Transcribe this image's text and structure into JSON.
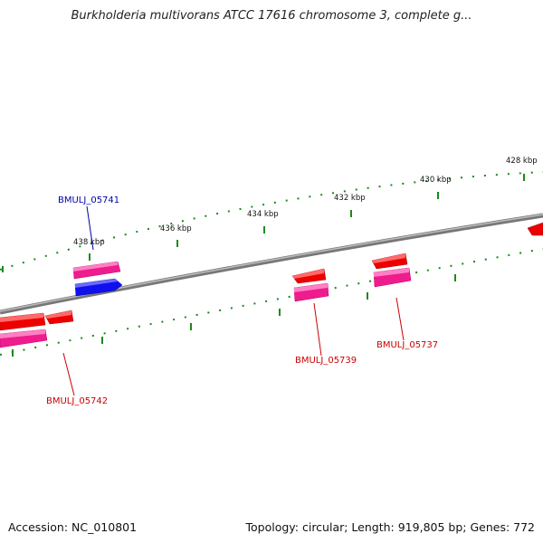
{
  "title": "Burkholderia multivorans ATCC 17616 chromosome 3, complete g...",
  "footer": {
    "accession": "Accession: NC_010801",
    "info": "Topology: circular; Length: 919,805 bp; Genes: 772"
  },
  "colors": {
    "backbone": "#8a8a8a",
    "tick": "#1a8a1a",
    "gene_red": "#ee0000",
    "gene_pink": "#ee1c8c",
    "gene_blue": "#1010ee",
    "label_red": "#cc0000",
    "label_blue": "#0000aa"
  },
  "kbp_labels": [
    "438 kbp",
    "436 kbp",
    "434 kbp",
    "432 kbp",
    "430 kbp",
    "428 kbp"
  ],
  "gene_labels": [
    {
      "id": "BMULJ_05741",
      "color": "blue"
    },
    {
      "id": "BMULJ_05739",
      "color": "red"
    },
    {
      "id": "BMULJ_05737",
      "color": "red"
    },
    {
      "id": "BMULJ_05742",
      "color": "red"
    }
  ]
}
